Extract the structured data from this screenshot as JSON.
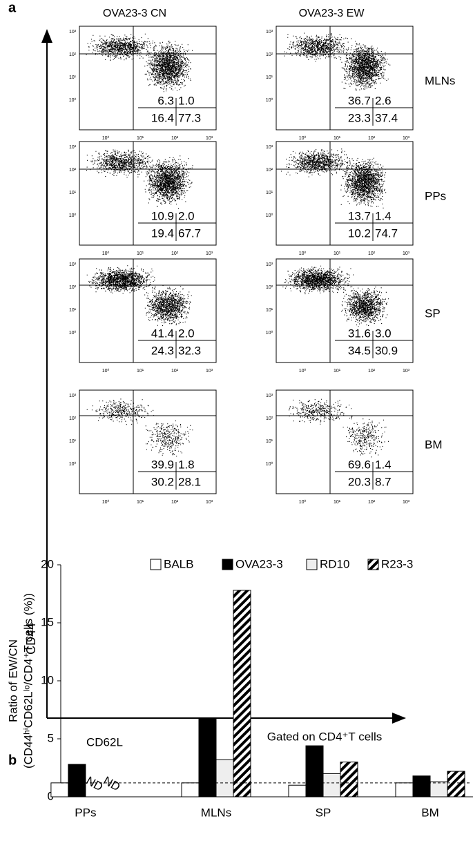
{
  "panel_a": {
    "letter": "a",
    "columns": [
      "OVA23-3 CN",
      "OVA23-3 EW"
    ],
    "tick_labels": [
      "10⁰",
      "10¹",
      "10²",
      "10³"
    ],
    "rows": [
      {
        "label": "MLNs",
        "plots": [
          [
            "6.3",
            "1.0",
            "16.4",
            "77.3"
          ],
          [
            "36.7",
            "2.6",
            "23.3",
            "37.4"
          ]
        ]
      },
      {
        "label": "PPs",
        "plots": [
          [
            "10.9",
            "2.0",
            "19.4",
            "67.7"
          ],
          [
            "13.7",
            "1.4",
            "10.2",
            "74.7"
          ]
        ]
      },
      {
        "label": "SP",
        "plots": [
          [
            "41.4",
            "2.0",
            "24.3",
            "32.3"
          ],
          [
            "31.6",
            "3.0",
            "34.5",
            "30.9"
          ]
        ]
      },
      {
        "label": "BM",
        "plots": [
          [
            "39.9",
            "1.8",
            "30.2",
            "28.1"
          ],
          [
            "69.6",
            "1.4",
            "20.3",
            "8.7"
          ]
        ]
      }
    ],
    "y_axis_label": "CD44",
    "x_axis_label": "CD62L",
    "gate_note": "Gated on CD4⁺T cells"
  },
  "chart_data": {
    "type": "bar",
    "letter": "b",
    "y_label": [
      "Ratio of EW/CN",
      "(CD44ʰⁱCD62Lˡᵒ/CD4⁺T cells (%))"
    ],
    "categories": [
      "PPs",
      "MLNs",
      "SP",
      "BM"
    ],
    "series": [
      {
        "name": "BALB",
        "color": "#ffffff",
        "values": [
          1.2,
          1.2,
          1.0,
          1.2
        ]
      },
      {
        "name": "OVA23-3",
        "color": "#000000",
        "values": [
          2.8,
          6.8,
          4.4,
          1.8
        ]
      },
      {
        "name": "RD10",
        "color": "#eeeeee",
        "values": [
          null,
          3.2,
          2.0,
          1.3
        ],
        "value_labels": [
          null,
          null,
          null,
          null
        ]
      },
      {
        "name": "R23-3",
        "color": "#000000",
        "pattern": "diagonal-hatch",
        "values": [
          null,
          17.8,
          3.0,
          2.2
        ]
      }
    ],
    "missing_label": "ND",
    "reference_line": 1.2,
    "ylim": [
      0,
      20
    ],
    "yticks": [
      0,
      5,
      10,
      15,
      20
    ],
    "legend": "top"
  }
}
